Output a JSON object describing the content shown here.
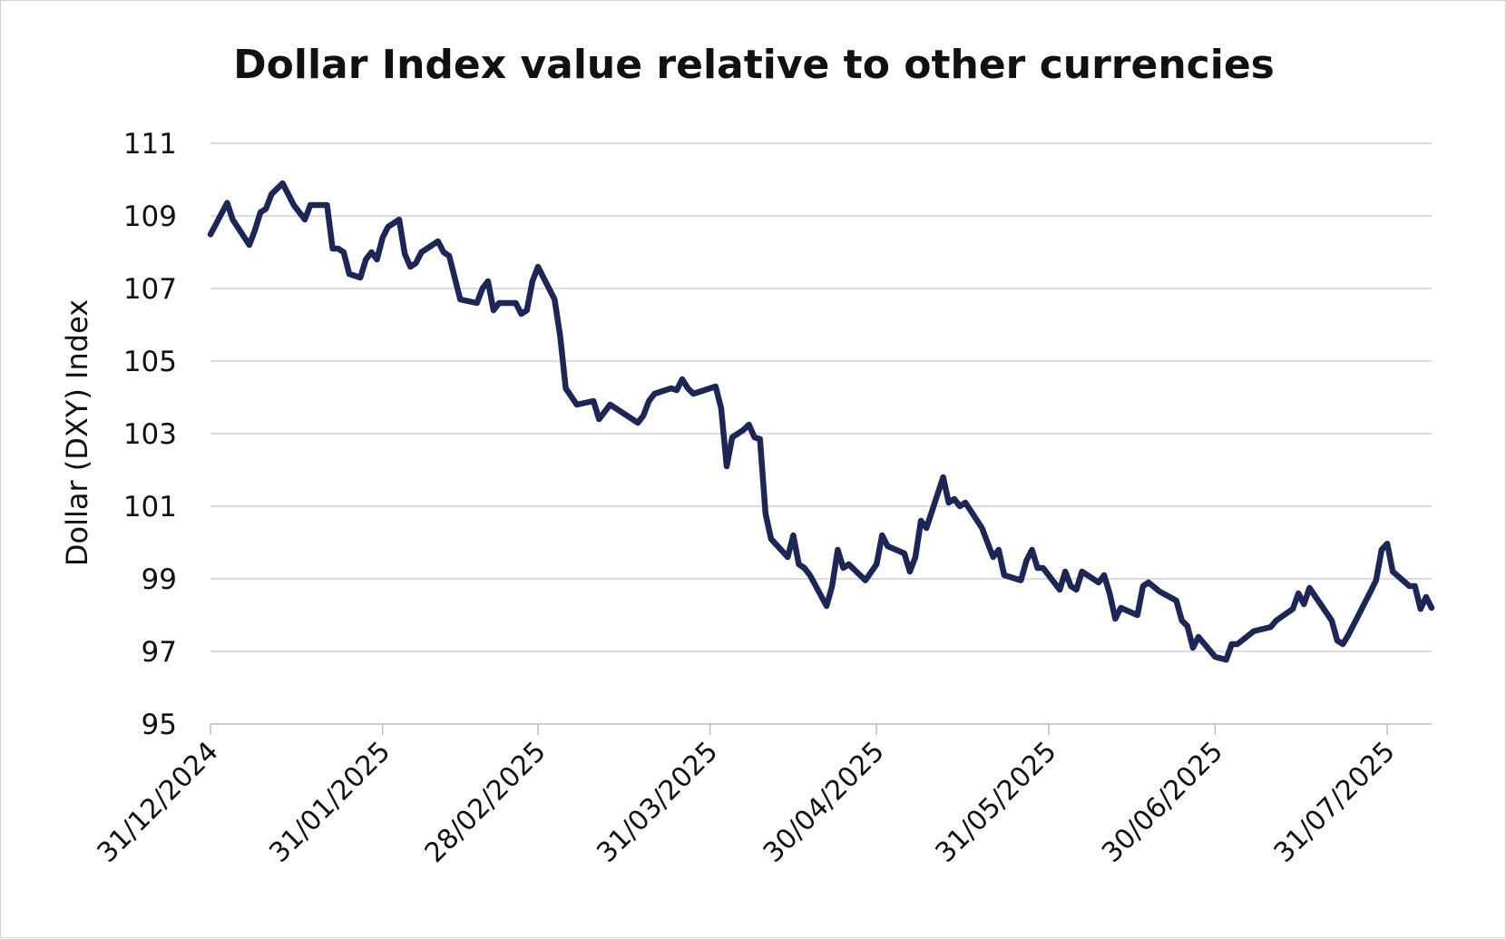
{
  "chart_data": {
    "type": "line",
    "title": "Dollar Index value relative to other currencies",
    "xlabel": "",
    "ylabel": "Dollar (DXY) Index",
    "ylim": [
      95,
      111
    ],
    "xlim": [
      "2024-12-31",
      "2025-08-08"
    ],
    "yticks": [
      95,
      97,
      99,
      101,
      103,
      105,
      107,
      109,
      111
    ],
    "xticks": [
      {
        "date": "2024-12-31",
        "label": "31/12/2024"
      },
      {
        "date": "2025-01-31",
        "label": "31/01/2025"
      },
      {
        "date": "2025-02-28",
        "label": "28/02/2025"
      },
      {
        "date": "2025-03-31",
        "label": "31/03/2025"
      },
      {
        "date": "2025-04-30",
        "label": "30/04/2025"
      },
      {
        "date": "2025-05-31",
        "label": "31/05/2025"
      },
      {
        "date": "2025-06-30",
        "label": "30/06/2025"
      },
      {
        "date": "2025-07-31",
        "label": "31/07/2025"
      }
    ],
    "grid": "horizontal",
    "line_color": "#1c2757",
    "series": [
      {
        "x": [
          "2024-12-31",
          "2025-01-03",
          "2025-01-04",
          "2025-01-07",
          "2025-01-08",
          "2025-01-09",
          "2025-01-10",
          "2025-01-11",
          "2025-01-13",
          "2025-01-15",
          "2025-01-17",
          "2025-01-18",
          "2025-01-21",
          "2025-01-22",
          "2025-01-23",
          "2025-01-24",
          "2025-01-25",
          "2025-01-27",
          "2025-01-28",
          "2025-01-29",
          "2025-01-30",
          "2025-01-31",
          "2025-02-01",
          "2025-02-03",
          "2025-02-04",
          "2025-02-05",
          "2025-02-06",
          "2025-02-07",
          "2025-02-10",
          "2025-02-11",
          "2025-02-12",
          "2025-02-14",
          "2025-02-17",
          "2025-02-18",
          "2025-02-19",
          "2025-02-20",
          "2025-02-21",
          "2025-02-24",
          "2025-02-25",
          "2025-02-26",
          "2025-02-27",
          "2025-02-28",
          "2025-03-03",
          "2025-03-04",
          "2025-03-05",
          "2025-03-07",
          "2025-03-10",
          "2025-03-11",
          "2025-03-13",
          "2025-03-18",
          "2025-03-19",
          "2025-03-20",
          "2025-03-21",
          "2025-03-24",
          "2025-03-25",
          "2025-03-26",
          "2025-03-27",
          "2025-03-28",
          "2025-04-01",
          "2025-04-02",
          "2025-04-03",
          "2025-04-04",
          "2025-04-06",
          "2025-04-07",
          "2025-04-08",
          "2025-04-09",
          "2025-04-10",
          "2025-04-11",
          "2025-04-14",
          "2025-04-15",
          "2025-04-16",
          "2025-04-17",
          "2025-04-18",
          "2025-04-21",
          "2025-04-22",
          "2025-04-23",
          "2025-04-24",
          "2025-04-25",
          "2025-04-28",
          "2025-04-30",
          "2025-05-01",
          "2025-05-02",
          "2025-05-05",
          "2025-05-06",
          "2025-05-07",
          "2025-05-08",
          "2025-05-09",
          "2025-05-12",
          "2025-05-13",
          "2025-05-14",
          "2025-05-15",
          "2025-05-16",
          "2025-05-19",
          "2025-05-20",
          "2025-05-21",
          "2025-05-22",
          "2025-05-23",
          "2025-05-26",
          "2025-05-27",
          "2025-05-28",
          "2025-05-29",
          "2025-05-30",
          "2025-06-02",
          "2025-06-03",
          "2025-06-04",
          "2025-06-05",
          "2025-06-06",
          "2025-06-09",
          "2025-06-10",
          "2025-06-11",
          "2025-06-12",
          "2025-06-13",
          "2025-06-16",
          "2025-06-17",
          "2025-06-18",
          "2025-06-20",
          "2025-06-23",
          "2025-06-24",
          "2025-06-25",
          "2025-06-26",
          "2025-06-27",
          "2025-06-30",
          "2025-07-02",
          "2025-07-03",
          "2025-07-04",
          "2025-07-07",
          "2025-07-10",
          "2025-07-11",
          "2025-07-14",
          "2025-07-15",
          "2025-07-16",
          "2025-07-17",
          "2025-07-21",
          "2025-07-22",
          "2025-07-23",
          "2025-07-24",
          "2025-07-28",
          "2025-07-29",
          "2025-07-30",
          "2025-07-31",
          "2025-08-01",
          "2025-08-04",
          "2025-08-05",
          "2025-08-06",
          "2025-08-07",
          "2025-08-08"
        ],
        "y": [
          108.49,
          109.36,
          108.9,
          108.2,
          108.6,
          109.1,
          109.2,
          109.6,
          109.9,
          109.3,
          108.9,
          109.3,
          109.3,
          108.1,
          108.1,
          108.0,
          107.4,
          107.3,
          107.8,
          108.0,
          107.8,
          108.4,
          108.7,
          108.9,
          107.96,
          107.6,
          107.7,
          108.0,
          108.3,
          108.0,
          107.9,
          106.7,
          106.6,
          107.0,
          107.2,
          106.4,
          106.6,
          106.6,
          106.3,
          106.4,
          107.2,
          107.6,
          106.7,
          105.7,
          104.25,
          103.8,
          103.9,
          103.4,
          103.8,
          103.3,
          103.5,
          103.9,
          104.1,
          104.25,
          104.2,
          104.5,
          104.25,
          104.1,
          104.3,
          103.7,
          102.1,
          102.9,
          103.1,
          103.25,
          102.9,
          102.85,
          100.8,
          100.1,
          99.6,
          100.2,
          99.4,
          99.3,
          99.1,
          98.25,
          98.8,
          99.8,
          99.3,
          99.4,
          98.96,
          99.4,
          100.2,
          99.9,
          99.7,
          99.2,
          99.6,
          100.6,
          100.4,
          101.8,
          101.1,
          101.2,
          101.0,
          101.1,
          100.4,
          100.0,
          99.6,
          99.8,
          99.1,
          98.96,
          99.5,
          99.8,
          99.3,
          99.3,
          98.7,
          99.2,
          98.8,
          98.7,
          99.2,
          98.9,
          99.1,
          98.6,
          97.9,
          98.2,
          98.0,
          98.8,
          98.9,
          98.65,
          98.4,
          97.85,
          97.7,
          97.1,
          97.4,
          96.85,
          96.77,
          97.2,
          97.2,
          97.56,
          97.67,
          97.85,
          98.17,
          98.6,
          98.3,
          98.75,
          97.85,
          97.3,
          97.2,
          97.45,
          98.65,
          98.96,
          99.8,
          99.97,
          99.2,
          98.8,
          98.8,
          98.17,
          98.5,
          98.2
        ]
      }
    ]
  }
}
